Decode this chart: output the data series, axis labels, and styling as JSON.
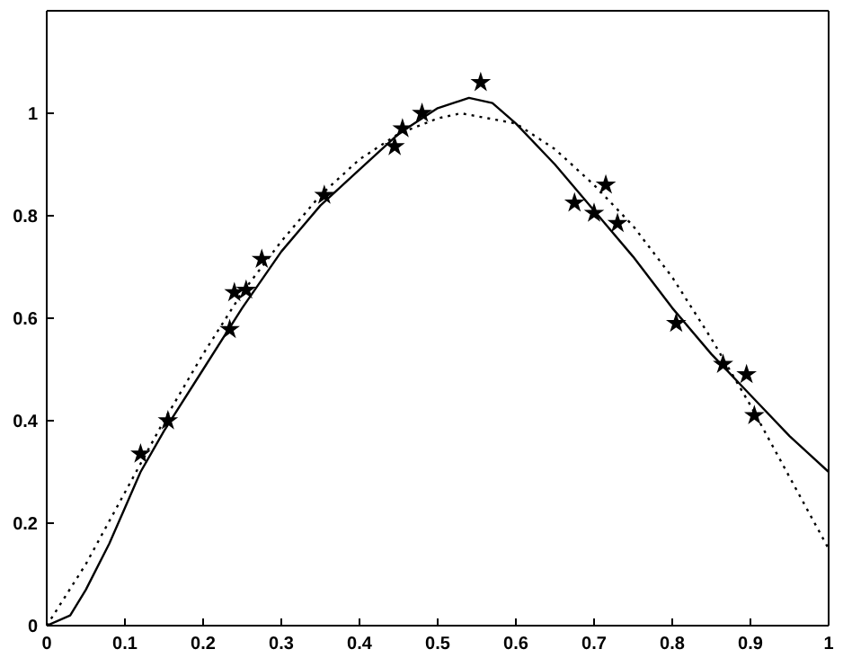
{
  "chart_data": {
    "type": "scatter",
    "xlim": [
      0,
      1
    ],
    "ylim": [
      0,
      1.2
    ],
    "xticks": [
      0,
      0.1,
      0.2,
      0.3,
      0.4,
      0.5,
      0.6,
      0.7,
      0.8,
      0.9,
      1
    ],
    "yticks": [
      0,
      0.2,
      0.4,
      0.6,
      0.8,
      1
    ],
    "grid": false,
    "legend": false,
    "series": [
      {
        "marker": "star",
        "color": "#000000",
        "x": [
          0.12,
          0.155,
          0.234,
          0.24,
          0.255,
          0.275,
          0.355,
          0.445,
          0.455,
          0.48,
          0.555,
          0.675,
          0.7,
          0.715,
          0.73,
          0.805,
          0.865,
          0.895,
          0.905
        ],
        "values": [
          0.335,
          0.4,
          0.578,
          0.65,
          0.655,
          0.715,
          0.84,
          0.935,
          0.97,
          1.0,
          1.06,
          0.825,
          0.805,
          0.86,
          0.785,
          0.59,
          0.51,
          0.49,
          0.41
        ]
      },
      {
        "type": "line",
        "marker": "none",
        "line_style": "solid",
        "color": "#000000",
        "x": [
          0,
          0.03,
          0.05,
          0.08,
          0.1,
          0.12,
          0.15,
          0.2,
          0.25,
          0.3,
          0.35,
          0.4,
          0.45,
          0.5,
          0.54,
          0.57,
          0.6,
          0.65,
          0.7,
          0.75,
          0.8,
          0.85,
          0.9,
          0.95,
          1
        ],
        "values": [
          0,
          0.02,
          0.07,
          0.16,
          0.23,
          0.3,
          0.38,
          0.5,
          0.62,
          0.73,
          0.82,
          0.89,
          0.96,
          1.01,
          1.03,
          1.02,
          0.98,
          0.9,
          0.81,
          0.72,
          0.62,
          0.53,
          0.45,
          0.37,
          0.3
        ]
      },
      {
        "type": "line",
        "marker": "none",
        "line_style": "dotted",
        "color": "#000000",
        "x": [
          0,
          0.05,
          0.1,
          0.15,
          0.2,
          0.25,
          0.3,
          0.35,
          0.4,
          0.45,
          0.5,
          0.53,
          0.6,
          0.65,
          0.7,
          0.75,
          0.8,
          0.85,
          0.9,
          0.95,
          1
        ],
        "values": [
          0,
          0.12,
          0.26,
          0.4,
          0.53,
          0.65,
          0.75,
          0.84,
          0.91,
          0.96,
          0.99,
          1.0,
          0.98,
          0.93,
          0.86,
          0.78,
          0.68,
          0.56,
          0.43,
          0.29,
          0.15
        ]
      }
    ]
  }
}
